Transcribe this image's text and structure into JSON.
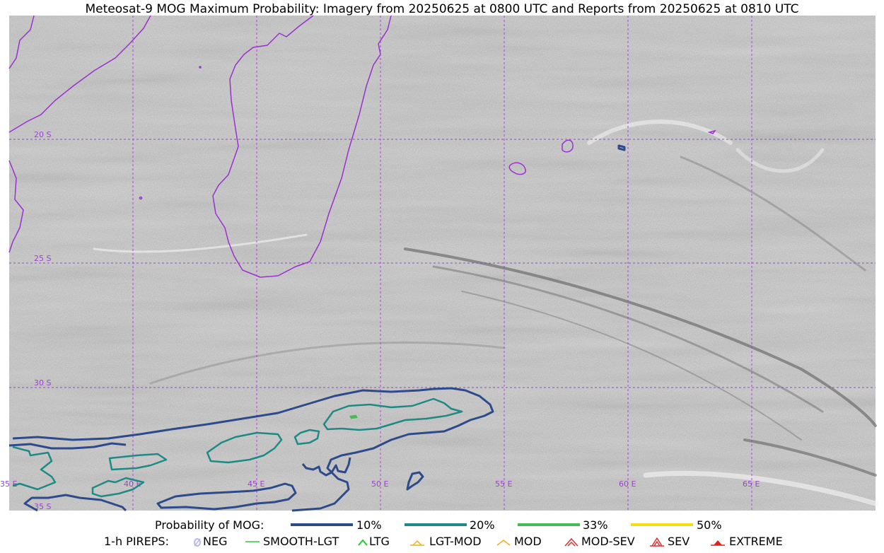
{
  "title": "Meteosat-9 MOG Maximum Probability: Imagery from 20250625 at 0800 UTC and Reports from 20250625 at 0810 UTC",
  "map": {
    "lat_labels": [
      "20 S",
      "25 S",
      "30 S",
      "35 S"
    ],
    "lon_labels": [
      "35 E",
      "40 E",
      "45 E",
      "50 E",
      "55 E",
      "60 E",
      "65 E"
    ],
    "coastline_color": "#9b30d0",
    "grid_color": "#a040d0"
  },
  "legend": {
    "prob_label": "Probability of MOG:",
    "levels": [
      {
        "label": "10%",
        "color": "#2d4a8a"
      },
      {
        "label": "20%",
        "color": "#1f8a84"
      },
      {
        "label": "33%",
        "color": "#44bb55"
      },
      {
        "label": "50%",
        "color": "#f5dd1a"
      }
    ],
    "pirep_label": "1-h PIREPS:",
    "pireps": [
      {
        "label": "NEG",
        "icon": "neg-icon",
        "color": "#b8b8f0"
      },
      {
        "label": "SMOOTH-LGT",
        "icon": "smooth-lgt-icon",
        "color": "#33cc33"
      },
      {
        "label": "LTG",
        "icon": "ltg-icon",
        "color": "#22cc22"
      },
      {
        "label": "LGT-MOD",
        "icon": "lgt-mod-icon",
        "color": "#f0b020"
      },
      {
        "label": "MOD",
        "icon": "mod-icon",
        "color": "#f0b020"
      },
      {
        "label": "MOD-SEV",
        "icon": "mod-sev-icon",
        "color": "#e03030"
      },
      {
        "label": "SEV",
        "icon": "sev-icon",
        "color": "#e03030"
      },
      {
        "label": "EXTREME",
        "icon": "extreme-icon",
        "color": "#e02020"
      }
    ]
  }
}
